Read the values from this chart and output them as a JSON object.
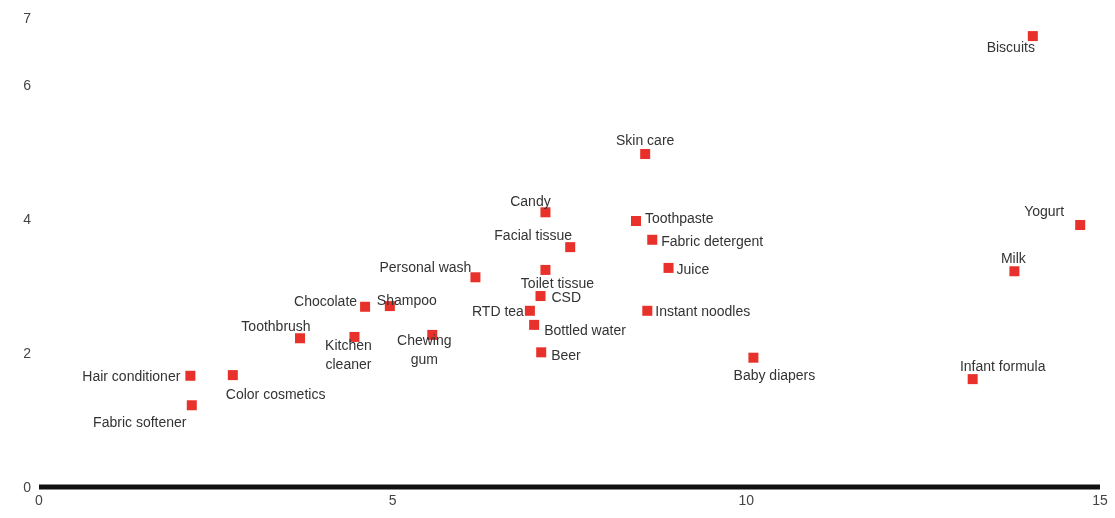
{
  "chart_data": {
    "type": "scatter",
    "marker": "square",
    "xlim": [
      0,
      15
    ],
    "xticks": [
      0,
      5,
      10,
      15
    ],
    "ylim": [
      0,
      7
    ],
    "yticks": [
      0,
      2,
      4,
      6,
      7
    ],
    "series": [
      {
        "name": "Hair conditioner",
        "color": "#e8312a",
        "x": [
          2.14
        ],
        "values": [
          1.66
        ]
      },
      {
        "name": "Fabric softener",
        "color": "#e8312a",
        "x": [
          2.16
        ],
        "values": [
          1.22
        ]
      },
      {
        "name": "Color cosmetics",
        "color": "#e8312a",
        "x": [
          2.74
        ],
        "values": [
          1.67
        ]
      },
      {
        "name": "Toothbrush",
        "color": "#e8312a",
        "x": [
          3.69
        ],
        "values": [
          2.22
        ]
      },
      {
        "name": "Kitchen cleaner",
        "color": "#e8312a",
        "x": [
          4.46
        ],
        "values": [
          2.24
        ]
      },
      {
        "name": "Chocolate",
        "color": "#e8312a",
        "x": [
          4.61
        ],
        "values": [
          2.69
        ]
      },
      {
        "name": "Shampoo",
        "color": "#e8312a",
        "x": [
          4.96
        ],
        "values": [
          2.7
        ]
      },
      {
        "name": "Chewing gum",
        "color": "#e8312a",
        "x": [
          5.56
        ],
        "values": [
          2.27
        ]
      },
      {
        "name": "Personal wash",
        "color": "#e8312a",
        "x": [
          6.17
        ],
        "values": [
          3.13
        ]
      },
      {
        "name": "Candy",
        "color": "#e8312a",
        "x": [
          7.16
        ],
        "values": [
          4.1
        ]
      },
      {
        "name": "Facial tissue",
        "color": "#e8312a",
        "x": [
          7.51
        ],
        "values": [
          3.58
        ]
      },
      {
        "name": "Toilet tissue",
        "color": "#e8312a",
        "x": [
          7.16
        ],
        "values": [
          3.24
        ]
      },
      {
        "name": "CSD",
        "color": "#e8312a",
        "x": [
          7.09
        ],
        "values": [
          2.85
        ]
      },
      {
        "name": "RTD tea",
        "color": "#e8312a",
        "x": [
          6.94
        ],
        "values": [
          2.63
        ]
      },
      {
        "name": "Bottled water",
        "color": "#e8312a",
        "x": [
          7.0
        ],
        "values": [
          2.42
        ]
      },
      {
        "name": "Beer",
        "color": "#e8312a",
        "x": [
          7.1
        ],
        "values": [
          2.01
        ]
      },
      {
        "name": "Skin care",
        "color": "#e8312a",
        "x": [
          8.57
        ],
        "values": [
          4.97
        ]
      },
      {
        "name": "Toothpaste",
        "color": "#e8312a",
        "x": [
          8.44
        ],
        "values": [
          3.97
        ]
      },
      {
        "name": "Fabric detergent",
        "color": "#e8312a",
        "x": [
          8.67
        ],
        "values": [
          3.69
        ]
      },
      {
        "name": "Juice",
        "color": "#e8312a",
        "x": [
          8.9
        ],
        "values": [
          3.27
        ]
      },
      {
        "name": "Instant noodles",
        "color": "#e8312a",
        "x": [
          8.6
        ],
        "values": [
          2.63
        ]
      },
      {
        "name": "Baby diapers",
        "color": "#e8312a",
        "x": [
          10.1
        ],
        "values": [
          1.93
        ]
      },
      {
        "name": "Biscuits",
        "color": "#e8312a",
        "x": [
          14.05
        ],
        "values": [
          6.73
        ]
      },
      {
        "name": "Yogurt",
        "color": "#e8312a",
        "x": [
          14.72
        ],
        "values": [
          3.91
        ]
      },
      {
        "name": "Milk",
        "color": "#e8312a",
        "x": [
          13.79
        ],
        "values": [
          3.22
        ]
      },
      {
        "name": "Infant formula",
        "color": "#e8312a",
        "x": [
          13.2
        ],
        "values": [
          1.61
        ]
      }
    ]
  }
}
